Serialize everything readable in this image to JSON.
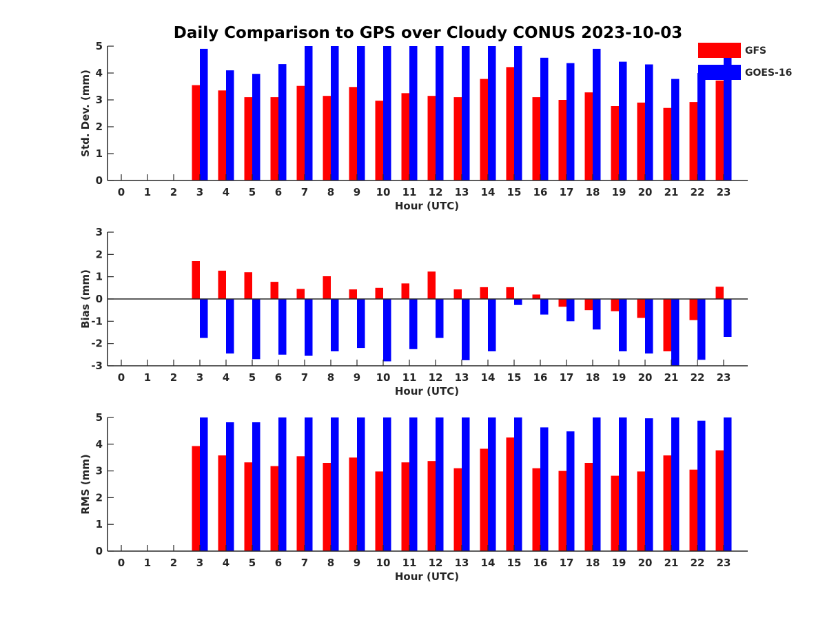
{
  "title": "Daily Comparison to GPS over Cloudy CONUS 2023-10-03",
  "legend": {
    "items": [
      {
        "label": "GFS",
        "color": "#ff0000"
      },
      {
        "label": "GOES-16",
        "color": "#0000ff"
      }
    ]
  },
  "colors": {
    "gfs": "#ff0000",
    "goes": "#0000ff",
    "axis": "#262626"
  },
  "chart_data": [
    {
      "type": "bar",
      "ylabel": "Std. Dev. (mm)",
      "xlabel": "Hour (UTC)",
      "ylim": [
        0,
        5
      ],
      "yticks": [
        0,
        1,
        2,
        3,
        4,
        5
      ],
      "categories": [
        "0",
        "1",
        "2",
        "3",
        "4",
        "5",
        "6",
        "7",
        "8",
        "9",
        "10",
        "11",
        "12",
        "13",
        "14",
        "15",
        "16",
        "17",
        "18",
        "19",
        "20",
        "21",
        "22",
        "23"
      ],
      "series": [
        {
          "name": "GFS",
          "values": [
            null,
            null,
            null,
            3.55,
            3.35,
            3.1,
            3.1,
            3.52,
            3.15,
            3.48,
            2.97,
            3.25,
            3.15,
            3.1,
            3.78,
            4.22,
            3.1,
            3.0,
            3.28,
            2.77,
            2.9,
            2.7,
            2.92,
            3.72
          ]
        },
        {
          "name": "GOES-16",
          "values": [
            null,
            null,
            null,
            4.9,
            4.1,
            3.97,
            4.33,
            5,
            5,
            5,
            5,
            5,
            5,
            5,
            5,
            5,
            4.57,
            4.37,
            4.9,
            4.42,
            4.32,
            3.78,
            4.0,
            4.6
          ]
        }
      ]
    },
    {
      "type": "bar",
      "ylabel": "Bias (mm)",
      "xlabel": "Hour (UTC)",
      "ylim": [
        -3,
        3
      ],
      "yticks": [
        -3,
        -2,
        -1,
        0,
        1,
        2,
        3
      ],
      "categories": [
        "0",
        "1",
        "2",
        "3",
        "4",
        "5",
        "6",
        "7",
        "8",
        "9",
        "10",
        "11",
        "12",
        "13",
        "14",
        "15",
        "16",
        "17",
        "18",
        "19",
        "20",
        "21",
        "22",
        "23"
      ],
      "series": [
        {
          "name": "GFS",
          "values": [
            null,
            null,
            null,
            1.7,
            1.27,
            1.2,
            0.77,
            0.45,
            1.02,
            0.43,
            0.5,
            0.7,
            1.23,
            0.43,
            0.53,
            0.53,
            0.2,
            -0.35,
            -0.5,
            -0.55,
            -0.85,
            -2.35,
            -0.95,
            0.55
          ]
        },
        {
          "name": "GOES-16",
          "values": [
            null,
            null,
            null,
            -1.75,
            -2.45,
            -2.7,
            -2.5,
            -2.55,
            -2.35,
            -2.2,
            -2.8,
            -2.25,
            -1.75,
            -2.75,
            -2.35,
            -0.27,
            -0.7,
            -1.0,
            -1.37,
            -2.35,
            -2.45,
            -3.0,
            -2.73,
            -1.7
          ]
        }
      ]
    },
    {
      "type": "bar",
      "ylabel": "RMS (mm)",
      "xlabel": "Hour (UTC)",
      "ylim": [
        0,
        5
      ],
      "yticks": [
        0,
        1,
        2,
        3,
        4,
        5
      ],
      "categories": [
        "0",
        "1",
        "2",
        "3",
        "4",
        "5",
        "6",
        "7",
        "8",
        "9",
        "10",
        "11",
        "12",
        "13",
        "14",
        "15",
        "16",
        "17",
        "18",
        "19",
        "20",
        "21",
        "22",
        "23"
      ],
      "series": [
        {
          "name": "GFS",
          "values": [
            null,
            null,
            null,
            3.93,
            3.58,
            3.32,
            3.18,
            3.55,
            3.3,
            3.5,
            2.98,
            3.32,
            3.37,
            3.1,
            3.83,
            4.25,
            3.1,
            3.0,
            3.3,
            2.82,
            2.98,
            3.58,
            3.05,
            3.77
          ]
        },
        {
          "name": "GOES-16",
          "values": [
            null,
            null,
            null,
            5,
            4.82,
            4.82,
            5,
            5,
            5,
            5,
            5,
            5,
            5,
            5,
            5,
            5,
            4.63,
            4.48,
            5,
            5,
            4.97,
            5,
            4.88,
            5
          ]
        }
      ]
    }
  ]
}
